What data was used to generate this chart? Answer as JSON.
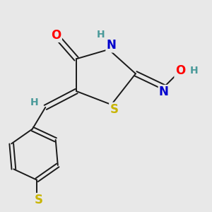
{
  "background_color": "#e8e8e8",
  "bond_color": "#1a1a1a",
  "atom_colors": {
    "O": "#ff0000",
    "N": "#0000cd",
    "S": "#c8b400",
    "H": "#4a9a9a",
    "C": "#1a1a1a"
  },
  "figsize": [
    3.0,
    3.0
  ],
  "dpi": 100,
  "xlim": [
    0,
    10
  ],
  "ylim": [
    0,
    10
  ]
}
